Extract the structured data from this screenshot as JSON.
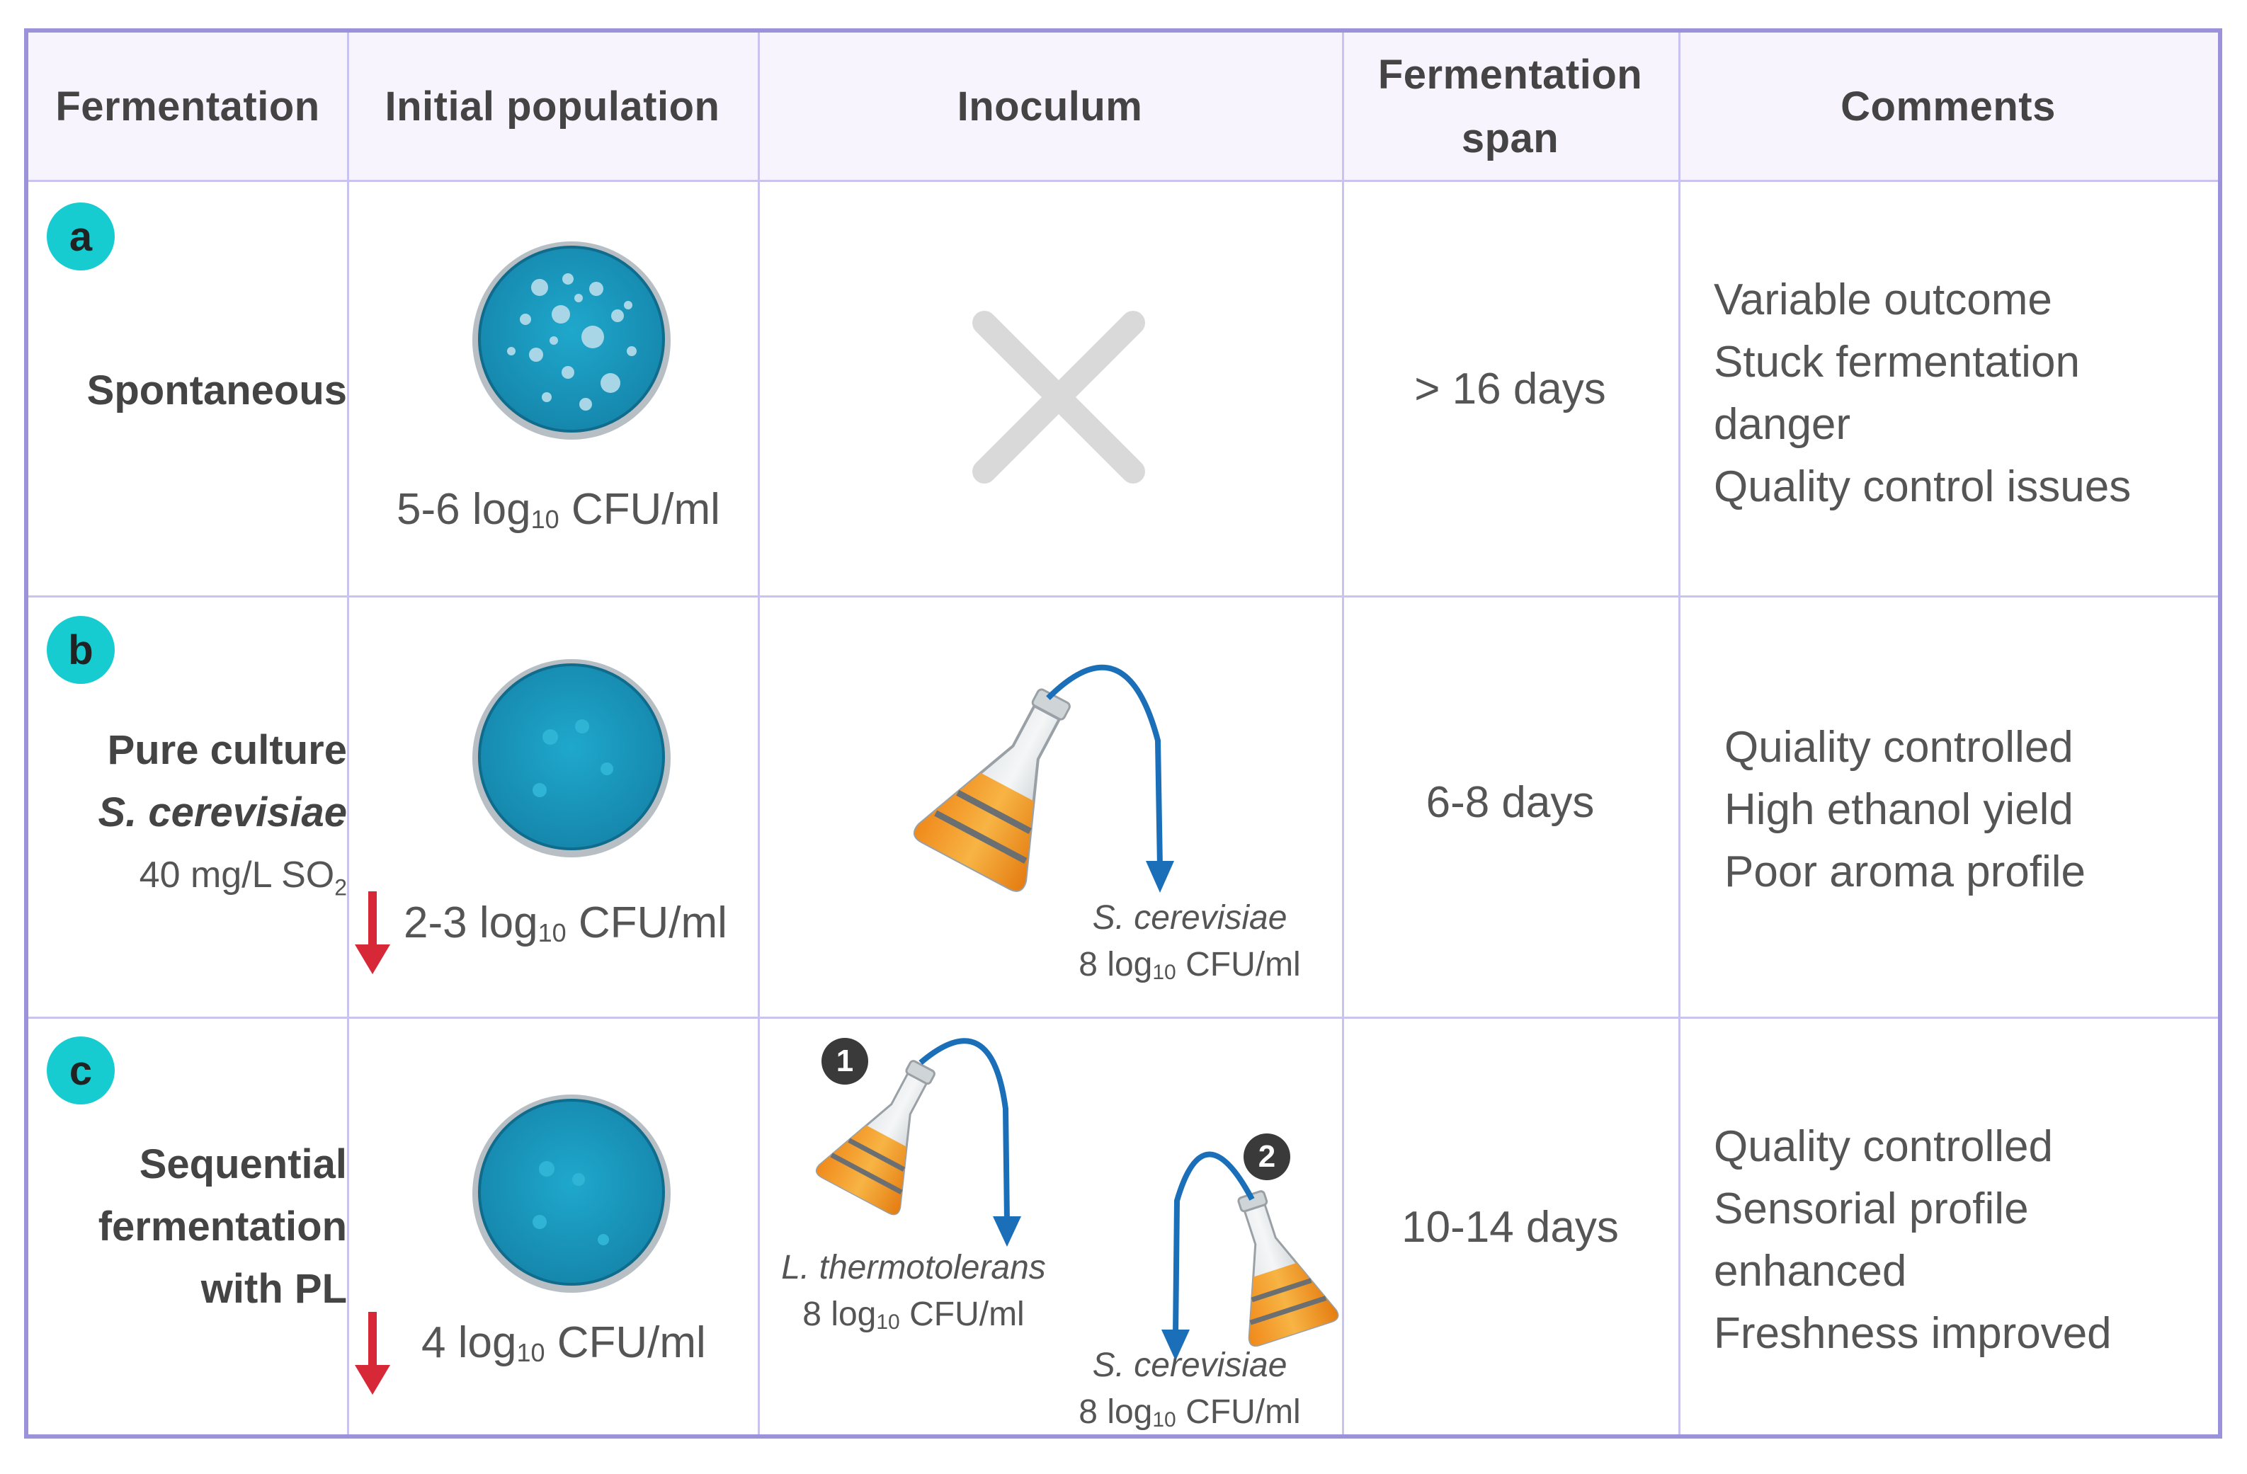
{
  "headers": {
    "fermentation": "Fermentation",
    "initial_population": "Initial population",
    "inoculum": "Inoculum",
    "span_line1": "Fermentation",
    "span_line2": "span",
    "comments": "Comments"
  },
  "colors": {
    "border": "#9b93d9",
    "grid": "#c9c3ef",
    "header_bg": "#f7f4fd",
    "badge": "#17ccd0",
    "plate": "#1a9fc4",
    "arrow_blue": "#1a6fb8",
    "arrow_red": "#d62837",
    "flask_liquid": "#f4a229",
    "cross": "#d9d9d9"
  },
  "rows": [
    {
      "badge": "a",
      "label_line1": "Spontaneous",
      "population_prefix": "5-6 log",
      "population_sub": "10",
      "population_suffix": " CFU/ml",
      "decrease": false,
      "inoculum": "none",
      "span": "> 16 days",
      "comments": [
        "Variable outcome",
        "Stuck fermentation",
        "danger",
        "Quality control issues"
      ]
    },
    {
      "badge": "b",
      "label_line1": "Pure culture",
      "label_line2": "S. cerevisiae",
      "label_line3_prefix": "40 mg/L SO",
      "label_line3_sub": "2",
      "population_prefix": "2-3 log",
      "population_sub": "10",
      "population_suffix": " CFU/ml",
      "decrease": true,
      "inoculum_species": "S. cerevisiae",
      "inoculum_dose_prefix": "8 log",
      "inoculum_dose_sub": "10",
      "inoculum_dose_suffix": " CFU/ml",
      "span": "6-8 days",
      "comments": [
        "Quiality controlled",
        "High ethanol yield",
        "Poor aroma profile"
      ]
    },
    {
      "badge": "c",
      "label_line1": "Sequential",
      "label_line2": "fermentation",
      "label_line3": "with PL",
      "population_prefix": "4 log",
      "population_sub": "10",
      "population_suffix": " CFU/ml",
      "decrease": true,
      "step1": "1",
      "step1_species": "L. thermotolerans",
      "step1_dose_prefix": "8 log",
      "step1_dose_sub": "10",
      "step1_dose_suffix": " CFU/ml",
      "step2": "2",
      "step2_species": "S. cerevisiae",
      "step2_dose_prefix": "8 log",
      "step2_dose_sub": "10",
      "step2_dose_suffix": " CFU/ml",
      "span": "10-14 days",
      "comments": [
        "Quality controlled",
        "Sensorial profile",
        "enhanced",
        "Freshness improved"
      ]
    }
  ]
}
